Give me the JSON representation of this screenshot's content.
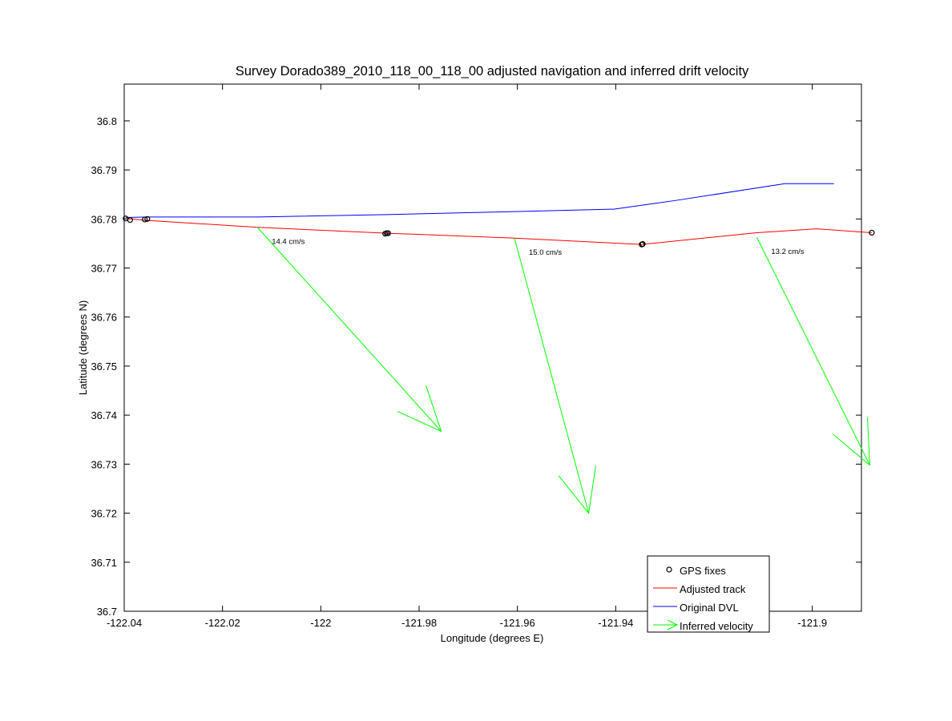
{
  "chart_data": {
    "type": "line",
    "title": "Survey Dorado389_2010_118_00_118_00 adjusted navigation and inferred drift velocity",
    "xlabel": "Longitude (degrees E)",
    "ylabel": "Latitude (degrees N)",
    "xlim": [
      -122.04,
      -121.89
    ],
    "ylim": [
      36.7,
      36.8075
    ],
    "xticks": [
      -122.04,
      -122.02,
      -122.0,
      -121.98,
      -121.96,
      -121.94,
      -121.9
    ],
    "xtick_labels": [
      "-122.04",
      "-122.02",
      "-122",
      "-121.98",
      "-121.96",
      "-121.94",
      "-121.9"
    ],
    "yticks": [
      36.7,
      36.71,
      36.72,
      36.73,
      36.74,
      36.75,
      36.76,
      36.77,
      36.78,
      36.79,
      36.8
    ],
    "ytick_labels": [
      "36.7",
      "36.71",
      "36.72",
      "36.73",
      "36.74",
      "36.75",
      "36.76",
      "36.77",
      "36.78",
      "36.79",
      "36.8"
    ],
    "grid": false,
    "legend_position": "bottom-right",
    "series": [
      {
        "name": "GPS fixes",
        "kind": "markers",
        "color": "#000000",
        "points": [
          [
            -122.0397,
            36.7801
          ],
          [
            -122.0388,
            36.7798
          ],
          [
            -122.0358,
            36.7799
          ],
          [
            -122.0353,
            36.78
          ],
          [
            -121.9869,
            36.777
          ],
          [
            -121.9866,
            36.7771
          ],
          [
            -121.9863,
            36.7771
          ],
          [
            -121.9347,
            36.7748
          ],
          [
            -121.9345,
            36.7749
          ],
          [
            -121.8879,
            36.7772
          ]
        ]
      },
      {
        "name": "Adjusted track",
        "kind": "line",
        "color": "#ff0000",
        "points": [
          [
            -122.0397,
            36.7801
          ],
          [
            -122.0353,
            36.7797
          ],
          [
            -122.0129,
            36.7783
          ],
          [
            -121.9866,
            36.7771
          ],
          [
            -121.9606,
            36.7761
          ],
          [
            -121.9347,
            36.7748
          ],
          [
            -121.9113,
            36.7772
          ],
          [
            -121.8991,
            36.778
          ],
          [
            -121.8879,
            36.7772
          ]
        ]
      },
      {
        "name": "Original DVL",
        "kind": "line",
        "color": "#0000ff",
        "points": [
          [
            -122.0397,
            36.7803
          ],
          [
            -122.0353,
            36.7804
          ],
          [
            -122.0129,
            36.7804
          ],
          [
            -121.9866,
            36.7809
          ],
          [
            -121.9606,
            36.7815
          ],
          [
            -121.9404,
            36.782
          ],
          [
            -121.9276,
            36.7838
          ],
          [
            -121.9056,
            36.7872
          ],
          [
            -121.8956,
            36.7872
          ]
        ]
      },
      {
        "name": "Inferred velocity",
        "kind": "arrows",
        "color": "#00ff00",
        "arrows": [
          {
            "from": [
              -122.0129,
              36.7783
            ],
            "to": [
              -121.9755,
              36.7367
            ],
            "label": "14.4 cm/s"
          },
          {
            "from": [
              -121.9606,
              36.7761
            ],
            "to": [
              -121.9455,
              36.72
            ],
            "label": "15.0 cm/s"
          },
          {
            "from": [
              -121.9113,
              36.7763
            ],
            "to": [
              -121.8883,
              36.7298
            ],
            "label": "13.2 cm/s"
          }
        ]
      }
    ]
  }
}
